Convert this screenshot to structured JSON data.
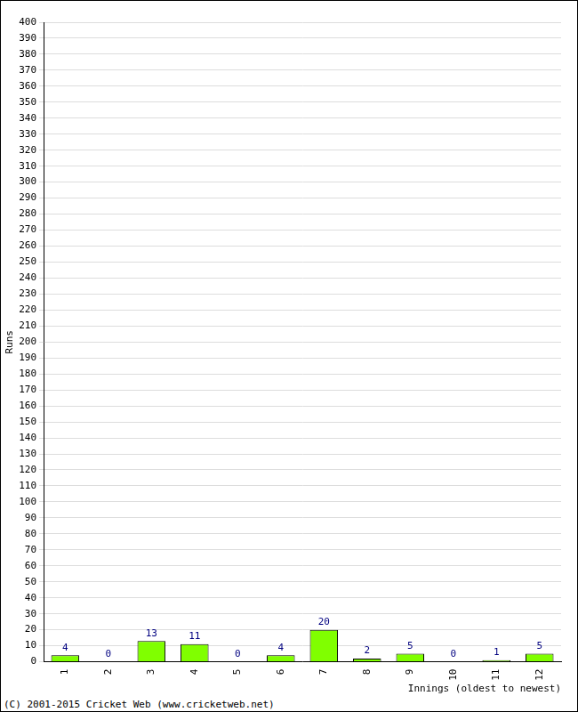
{
  "chart_data": {
    "type": "bar",
    "y_label": "Runs",
    "x_label": "Innings (oldest to newest)",
    "annotations": [
      "(C) 2001-2015 Cricket Web (www.cricketweb.net)"
    ],
    "categories": [
      "1",
      "2",
      "3",
      "4",
      "5",
      "6",
      "7",
      "8",
      "9",
      "10",
      "11",
      "12"
    ],
    "values": [
      4,
      0,
      13,
      11,
      0,
      4,
      20,
      2,
      5,
      0,
      1,
      5
    ],
    "color": "#80ff00",
    "ylim": [
      0,
      400
    ],
    "yticks": [
      0,
      10,
      20,
      30,
      40,
      50,
      60,
      70,
      80,
      90,
      100,
      110,
      120,
      130,
      140,
      150,
      160,
      170,
      180,
      190,
      200,
      210,
      220,
      230,
      240,
      250,
      260,
      270,
      280,
      290,
      300,
      310,
      320,
      330,
      340,
      350,
      360,
      370,
      380,
      390,
      400
    ],
    "grid": true,
    "data_labels": true
  }
}
